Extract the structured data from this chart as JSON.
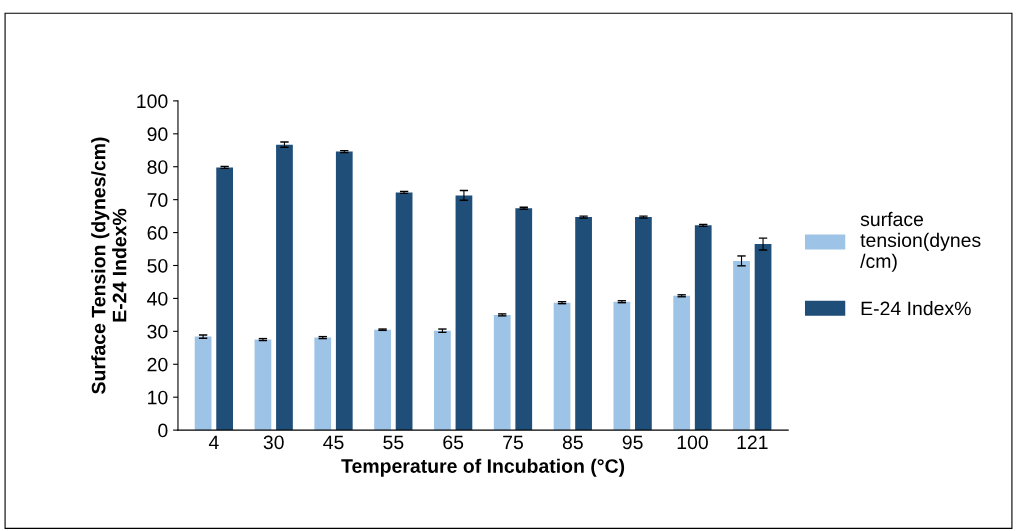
{
  "chart_data": {
    "type": "bar",
    "xlabel": "Temperature of Incubation (°C)",
    "ylabel": "Surface Tension (dynes/cm)\nE-24 Index%",
    "categories": [
      "4",
      "30",
      "45",
      "55",
      "65",
      "75",
      "85",
      "95",
      "100",
      "121"
    ],
    "series": [
      {
        "name": "surface\ntension(dynes\n/cm)",
        "color": "#9dc3e6",
        "values": [
          28.4,
          27.5,
          28.1,
          30.5,
          30.2,
          35,
          38.7,
          39,
          40.8,
          51.4
        ],
        "errors": [
          0.5,
          0.3,
          0.3,
          0.2,
          0.5,
          0.3,
          0.3,
          0.3,
          0.3,
          1.5
        ]
      },
      {
        "name": "E-24 Index%",
        "color": "#1f4e79",
        "values": [
          79.8,
          86.7,
          84.6,
          72.2,
          71.3,
          67.4,
          64.7,
          64.7,
          62.2,
          56.5
        ],
        "errors": [
          0.3,
          0.8,
          0.3,
          0.3,
          1.5,
          0.3,
          0.3,
          0.3,
          0.3,
          1.8
        ]
      }
    ],
    "ylim": [
      0,
      100
    ],
    "yticks": [
      0,
      10,
      20,
      30,
      40,
      50,
      60,
      70,
      80,
      90,
      100
    ],
    "grid": false,
    "legend": "right"
  }
}
